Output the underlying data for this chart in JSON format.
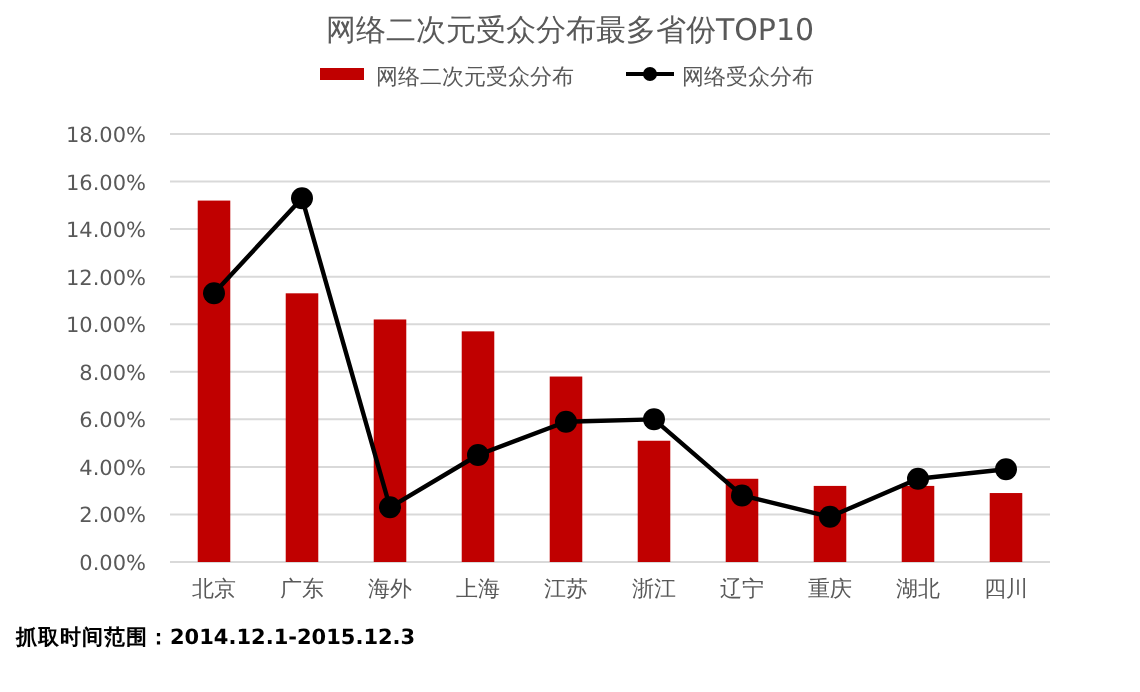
{
  "chart_data": {
    "type": "bar",
    "title": "网络二次元受众分布最多省份TOP10",
    "categories": [
      "北京",
      "广东",
      "海外",
      "上海",
      "江苏",
      "浙江",
      "辽宁",
      "重庆",
      "湖北",
      "四川"
    ],
    "series": [
      {
        "name": "网络二次元受众分布",
        "color": "#c00000",
        "values": [
          15.2,
          11.3,
          10.2,
          9.7,
          7.8,
          5.1,
          3.5,
          3.2,
          3.2,
          2.9
        ]
      },
      {
        "name": "网络受众分布",
        "type": "line",
        "color": "#000000",
        "marker": "circle",
        "values": [
          11.3,
          15.3,
          2.3,
          4.5,
          5.9,
          6.0,
          2.8,
          1.9,
          3.5,
          3.9
        ]
      }
    ],
    "ylim": [
      0,
      18
    ],
    "yticks": [
      {
        "value": 0,
        "label": "0.00%"
      },
      {
        "value": 2,
        "label": "2.00%"
      },
      {
        "value": 4,
        "label": "4.00%"
      },
      {
        "value": 6,
        "label": "6.00%"
      },
      {
        "value": 8,
        "label": "8.00%"
      },
      {
        "value": 10,
        "label": "10.00%"
      },
      {
        "value": 12,
        "label": "12.00%"
      },
      {
        "value": 14,
        "label": "14.00%"
      },
      {
        "value": 16,
        "label": "16.00%"
      },
      {
        "value": 18,
        "label": "18.00%"
      }
    ],
    "grid": "y",
    "legend": "top",
    "annotations": [
      "抓取时间范围：2014.12.1-2015.12.3"
    ]
  }
}
